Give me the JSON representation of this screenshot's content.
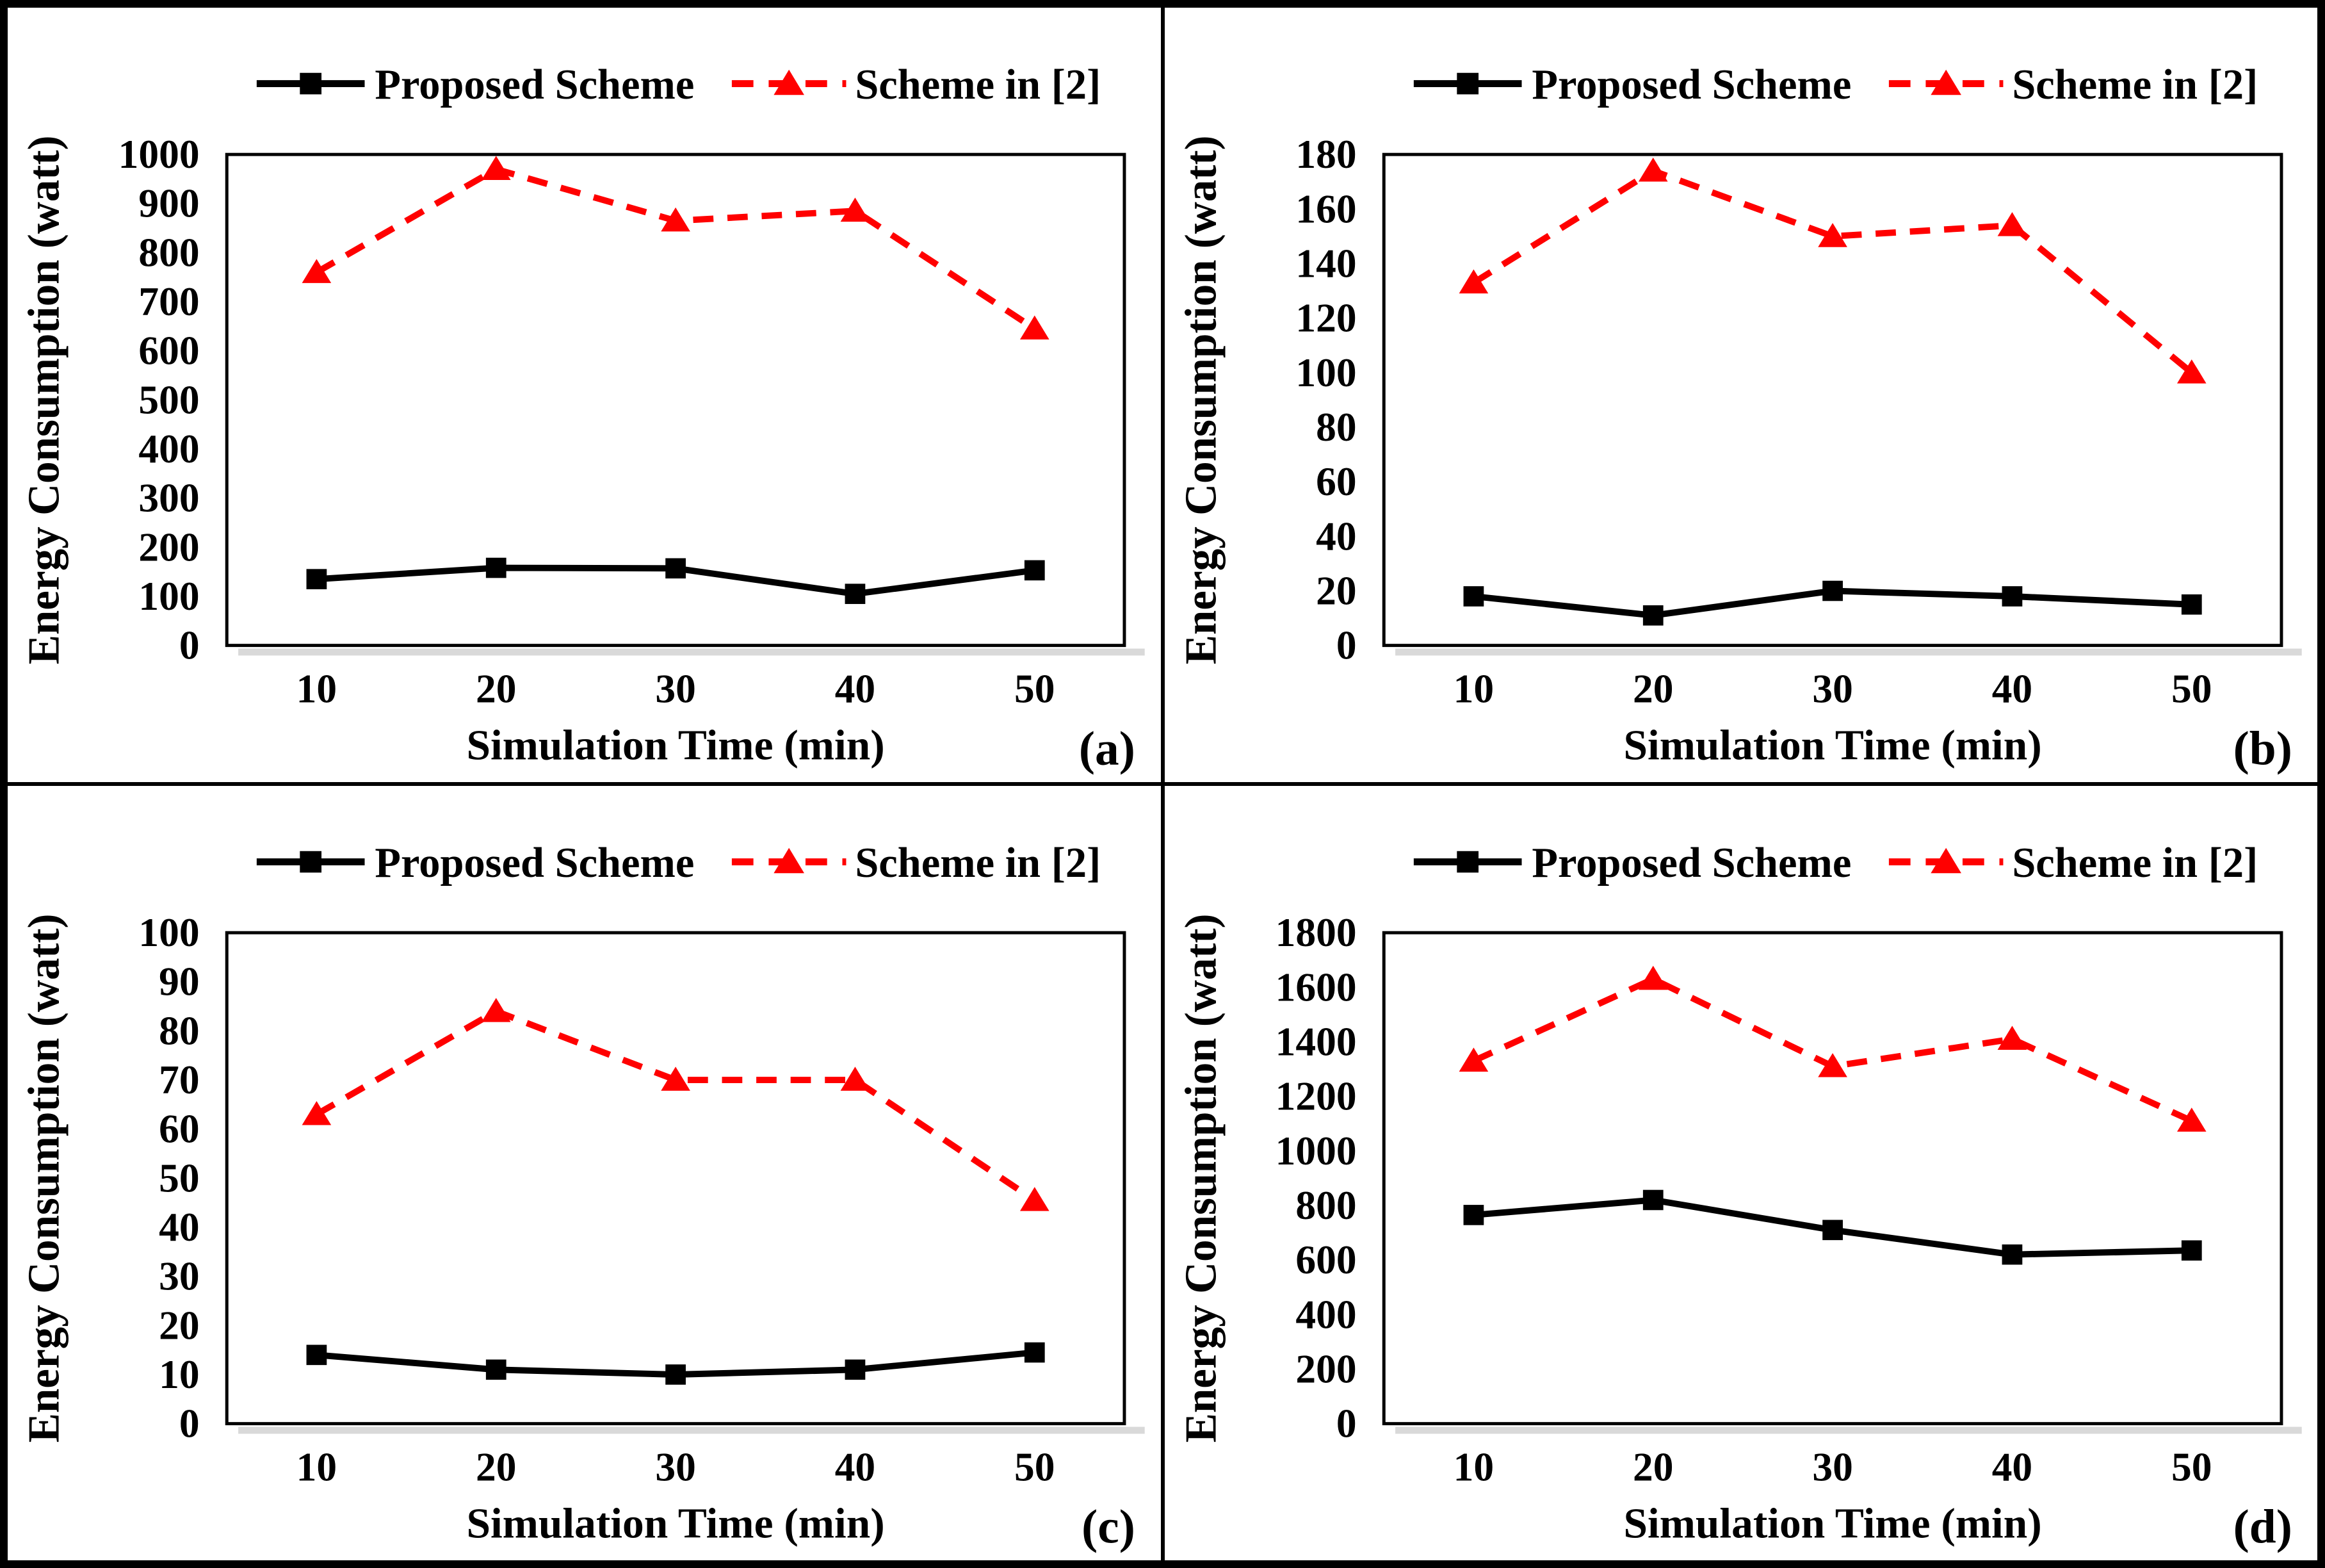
{
  "figure": {
    "ylabel": "Energy Consumption (watt)",
    "xlabel": "Simulation Time (min)",
    "colors": {
      "proposed": "#000000",
      "scheme2": "#ff0000",
      "plot_border": "#000000",
      "axis_shadow": "#d9d9d9",
      "background": "#ffffff",
      "frame": "#000000"
    },
    "legend": [
      {
        "label": "Proposed Scheme",
        "color": "#000000",
        "marker": "square",
        "line": "solid"
      },
      {
        "label": "Scheme in [2]",
        "color": "#ff0000",
        "marker": "triangle",
        "line": "dashed"
      }
    ],
    "legend_position": "top-center"
  },
  "chart_data": [
    {
      "type": "line",
      "panel_label": "(a)",
      "xlabel": "Simulation Time (min)",
      "ylabel": "Energy Consumption (watt)",
      "categories": [
        10,
        20,
        30,
        40,
        50
      ],
      "ylim": [
        0,
        1000
      ],
      "yticks": [
        0,
        100,
        200,
        300,
        400,
        500,
        600,
        700,
        800,
        900,
        1000
      ],
      "grid": false,
      "series": [
        {
          "name": "Proposed Scheme",
          "values": [
            135,
            158,
            157,
            105,
            153
          ]
        },
        {
          "name": "Scheme in [2]",
          "values": [
            760,
            970,
            865,
            885,
            645
          ]
        }
      ]
    },
    {
      "type": "line",
      "panel_label": "(b)",
      "xlabel": "Simulation Time (min)",
      "ylabel": "Energy Consumption (watt)",
      "categories": [
        10,
        20,
        30,
        40,
        50
      ],
      "ylim": [
        0,
        180
      ],
      "yticks": [
        0,
        20,
        40,
        60,
        80,
        100,
        120,
        140,
        160,
        180
      ],
      "grid": false,
      "series": [
        {
          "name": "Proposed Scheme",
          "values": [
            18,
            11,
            20,
            18,
            15
          ]
        },
        {
          "name": "Scheme in [2]",
          "values": [
            133,
            174,
            150,
            154,
            100
          ]
        }
      ]
    },
    {
      "type": "line",
      "panel_label": "(c)",
      "xlabel": "Simulation Time (min)",
      "ylabel": "Energy Consumption (watt)",
      "categories": [
        10,
        20,
        30,
        40,
        50
      ],
      "ylim": [
        0,
        100
      ],
      "yticks": [
        0,
        10,
        20,
        30,
        40,
        50,
        60,
        70,
        80,
        90,
        100
      ],
      "grid": false,
      "series": [
        {
          "name": "Proposed Scheme",
          "values": [
            14,
            11,
            10,
            11,
            14.5
          ]
        },
        {
          "name": "Scheme in [2]",
          "values": [
            63,
            84,
            70,
            70,
            45.5
          ]
        }
      ]
    },
    {
      "type": "line",
      "panel_label": "(d)",
      "xlabel": "Simulation Time (min)",
      "ylabel": "Energy Consumption (watt)",
      "categories": [
        10,
        20,
        30,
        40,
        50
      ],
      "ylim": [
        0,
        1800
      ],
      "yticks": [
        0,
        200,
        400,
        600,
        800,
        1000,
        1200,
        1400,
        1600,
        1800
      ],
      "grid": false,
      "series": [
        {
          "name": "Proposed Scheme",
          "values": [
            765,
            820,
            710,
            620,
            635
          ]
        },
        {
          "name": "Scheme in [2]",
          "values": [
            1330,
            1630,
            1310,
            1410,
            1110
          ]
        }
      ]
    }
  ]
}
